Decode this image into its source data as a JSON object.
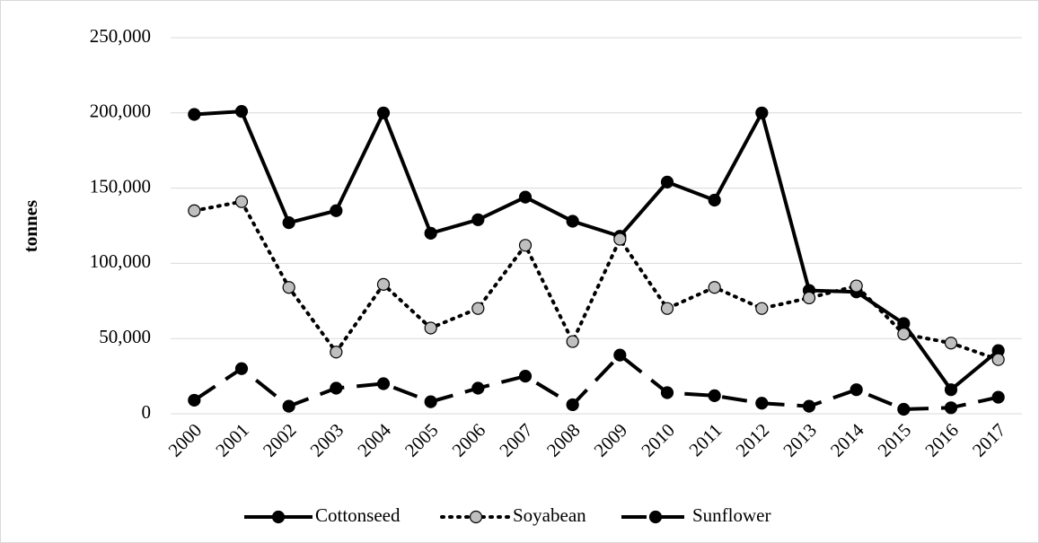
{
  "chart_data": {
    "type": "line",
    "y_label": "tonnes",
    "categories": [
      "2000",
      "2001",
      "2002",
      "2003",
      "2004",
      "2005",
      "2006",
      "2007",
      "2008",
      "2009",
      "2010",
      "2011",
      "2012",
      "2013",
      "2014",
      "2015",
      "2016",
      "2017"
    ],
    "series": [
      {
        "name": "Cottonseed",
        "color": "#000000",
        "marker_color": "#000000",
        "dash": "solid",
        "values": [
          199000,
          201000,
          127000,
          135000,
          200000,
          120000,
          129000,
          144000,
          128000,
          118000,
          154000,
          142000,
          200000,
          82000,
          81000,
          60000,
          16000,
          42000
        ]
      },
      {
        "name": "Soyabean",
        "color": "#000000",
        "marker_color": "#bfbfbf",
        "dash": "dotted",
        "values": [
          135000,
          141000,
          84000,
          41000,
          86000,
          57000,
          70000,
          112000,
          48000,
          116000,
          70000,
          84000,
          70000,
          77000,
          85000,
          53000,
          47000,
          36000
        ]
      },
      {
        "name": "Sunflower",
        "color": "#000000",
        "marker_color": "#000000",
        "dash": "dashed",
        "values": [
          9000,
          30000,
          5000,
          17000,
          20000,
          8000,
          17000,
          25000,
          6000,
          39000,
          14000,
          12000,
          7000,
          5000,
          16000,
          3000,
          4000,
          11000
        ]
      }
    ],
    "ylim": [
      0,
      250000
    ],
    "yticks": [
      {
        "value": 0,
        "label": "0"
      },
      {
        "value": 50000,
        "label": "50,000"
      },
      {
        "value": 100000,
        "label": "100,000"
      },
      {
        "value": 150000,
        "label": "150,000"
      },
      {
        "value": 200000,
        "label": "200,000"
      },
      {
        "value": 250000,
        "label": "250,000"
      }
    ],
    "grid": true,
    "legend": "bottom"
  }
}
